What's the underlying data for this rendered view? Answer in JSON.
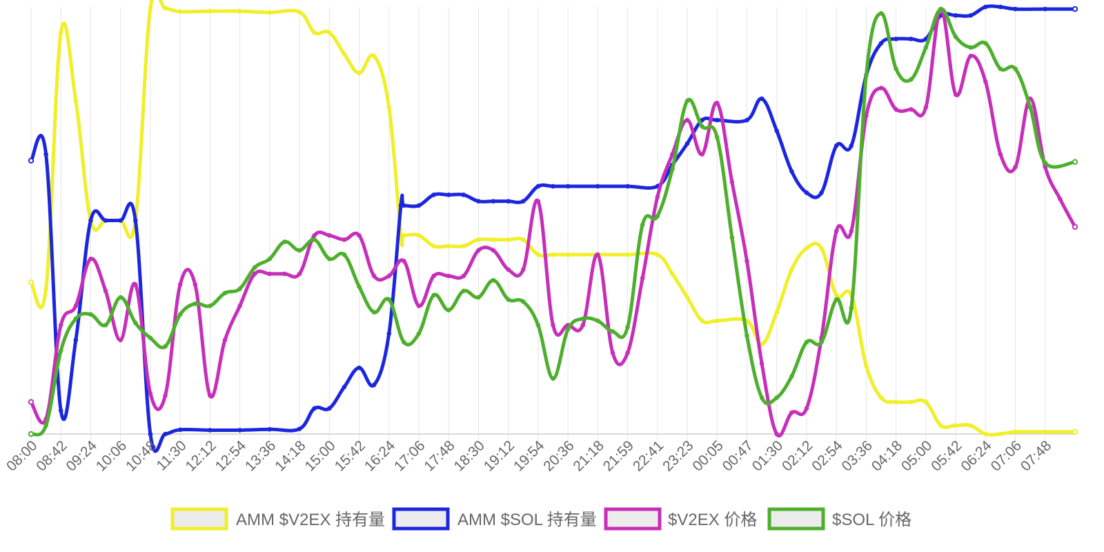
{
  "chart_data": {
    "type": "line",
    "title": "",
    "xlabel": "",
    "ylabel": "",
    "ylim": [
      0,
      1
    ],
    "x": [
      "08:00",
      "08:42",
      "09:24",
      "10:06",
      "10:48",
      "11:30",
      "12:12",
      "12:54",
      "13:36",
      "14:18",
      "15:00",
      "15:42",
      "16:24",
      "17:06",
      "17:48",
      "18:30",
      "19:12",
      "19:54",
      "20:36",
      "21:18",
      "21:59",
      "22:41",
      "23:23",
      "00:05",
      "00:47",
      "01:30",
      "02:12",
      "02:54",
      "03:36",
      "04:18",
      "05:00",
      "05:42",
      "06:24",
      "07:06",
      "07:48"
    ],
    "grid": true,
    "legend_position": "bottom",
    "series": [
      {
        "name": "AMM $V2EX 持有量",
        "color": "#f0ef2a",
        "points": [
          [
            0.0,
            0.355
          ],
          [
            0.5,
            0.34
          ],
          [
            1.0,
            0.94
          ],
          [
            1.5,
            0.78
          ],
          [
            2.0,
            0.5
          ],
          [
            2.5,
            0.5
          ],
          [
            3.0,
            0.5
          ],
          [
            3.5,
            0.5
          ],
          [
            4.0,
            0.997
          ],
          [
            4.5,
            0.997
          ],
          [
            5.0,
            0.989
          ],
          [
            6.0,
            0.99
          ],
          [
            7.0,
            0.99
          ],
          [
            8.0,
            0.987
          ],
          [
            9.0,
            0.988
          ],
          [
            9.5,
            0.94
          ],
          [
            10.0,
            0.94
          ],
          [
            10.5,
            0.89
          ],
          [
            11.0,
            0.845
          ],
          [
            11.5,
            0.885
          ],
          [
            12.0,
            0.765
          ],
          [
            12.4,
            0.465
          ],
          [
            12.5,
            0.465
          ],
          [
            13.0,
            0.465
          ],
          [
            13.5,
            0.44
          ],
          [
            14.0,
            0.44
          ],
          [
            14.5,
            0.44
          ],
          [
            15.0,
            0.455
          ],
          [
            15.5,
            0.455
          ],
          [
            16.0,
            0.455
          ],
          [
            16.5,
            0.455
          ],
          [
            17.0,
            0.42
          ],
          [
            17.5,
            0.42
          ],
          [
            18.0,
            0.42
          ],
          [
            19.0,
            0.42
          ],
          [
            20.0,
            0.42
          ],
          [
            21.0,
            0.42
          ],
          [
            21.5,
            0.375
          ],
          [
            22.0,
            0.32
          ],
          [
            22.5,
            0.265
          ],
          [
            23.0,
            0.265
          ],
          [
            24.0,
            0.265
          ],
          [
            24.5,
            0.21
          ],
          [
            25.0,
            0.285
          ],
          [
            25.5,
            0.385
          ],
          [
            26.0,
            0.435
          ],
          [
            26.5,
            0.435
          ],
          [
            27.0,
            0.325
          ],
          [
            27.5,
            0.325
          ],
          [
            28.0,
            0.16
          ],
          [
            28.5,
            0.085
          ],
          [
            29.0,
            0.075
          ],
          [
            29.5,
            0.075
          ],
          [
            30.0,
            0.075
          ],
          [
            30.5,
            0.02
          ],
          [
            31.0,
            0.02
          ],
          [
            31.5,
            0.02
          ],
          [
            32.0,
            0.0
          ],
          [
            32.5,
            0.0
          ],
          [
            33.0,
            0.005
          ],
          [
            34.0,
            0.005
          ],
          [
            35.0,
            0.005
          ]
        ]
      },
      {
        "name": "AMM $SOL 持有量",
        "color": "#1b27de",
        "points": [
          [
            0.0,
            0.64
          ],
          [
            0.5,
            0.655
          ],
          [
            1.0,
            0.055
          ],
          [
            1.5,
            0.22
          ],
          [
            2.0,
            0.5
          ],
          [
            2.5,
            0.5
          ],
          [
            3.0,
            0.5
          ],
          [
            3.5,
            0.5
          ],
          [
            4.0,
            0.0
          ],
          [
            4.5,
            0.0
          ],
          [
            5.0,
            0.01
          ],
          [
            6.0,
            0.009
          ],
          [
            7.0,
            0.009
          ],
          [
            8.0,
            0.011
          ],
          [
            9.0,
            0.012
          ],
          [
            9.5,
            0.06
          ],
          [
            10.0,
            0.06
          ],
          [
            10.5,
            0.11
          ],
          [
            11.0,
            0.155
          ],
          [
            11.5,
            0.115
          ],
          [
            12.0,
            0.235
          ],
          [
            12.4,
            0.535
          ],
          [
            12.5,
            0.535
          ],
          [
            13.0,
            0.535
          ],
          [
            13.5,
            0.56
          ],
          [
            14.0,
            0.56
          ],
          [
            14.5,
            0.56
          ],
          [
            15.0,
            0.545
          ],
          [
            15.5,
            0.545
          ],
          [
            16.0,
            0.545
          ],
          [
            16.5,
            0.545
          ],
          [
            17.0,
            0.58
          ],
          [
            17.5,
            0.58
          ],
          [
            18.0,
            0.58
          ],
          [
            19.0,
            0.58
          ],
          [
            20.0,
            0.58
          ],
          [
            21.0,
            0.58
          ],
          [
            21.5,
            0.63
          ],
          [
            22.0,
            0.68
          ],
          [
            22.5,
            0.735
          ],
          [
            23.0,
            0.735
          ],
          [
            24.0,
            0.735
          ],
          [
            24.5,
            0.785
          ],
          [
            25.0,
            0.71
          ],
          [
            25.5,
            0.615
          ],
          [
            26.0,
            0.565
          ],
          [
            26.5,
            0.565
          ],
          [
            27.0,
            0.675
          ],
          [
            27.5,
            0.675
          ],
          [
            28.0,
            0.84
          ],
          [
            28.5,
            0.915
          ],
          [
            29.0,
            0.925
          ],
          [
            29.5,
            0.925
          ],
          [
            30.0,
            0.925
          ],
          [
            30.5,
            0.98
          ],
          [
            31.0,
            0.98
          ],
          [
            31.5,
            0.98
          ],
          [
            32.0,
            1.0
          ],
          [
            32.5,
            1.0
          ],
          [
            33.0,
            0.995
          ],
          [
            34.0,
            0.995
          ],
          [
            35.0,
            0.995
          ]
        ]
      },
      {
        "name": "$V2EX 价格",
        "color": "#c62fb9",
        "points": [
          [
            0.0,
            0.075
          ],
          [
            0.5,
            0.035
          ],
          [
            1.0,
            0.255
          ],
          [
            1.5,
            0.3
          ],
          [
            2.0,
            0.41
          ],
          [
            2.5,
            0.335
          ],
          [
            3.0,
            0.22
          ],
          [
            3.5,
            0.35
          ],
          [
            4.0,
            0.095
          ],
          [
            4.5,
            0.09
          ],
          [
            5.0,
            0.35
          ],
          [
            5.5,
            0.35
          ],
          [
            6.0,
            0.09
          ],
          [
            6.5,
            0.22
          ],
          [
            7.0,
            0.3
          ],
          [
            7.5,
            0.375
          ],
          [
            8.0,
            0.375
          ],
          [
            8.5,
            0.375
          ],
          [
            9.0,
            0.375
          ],
          [
            9.5,
            0.465
          ],
          [
            10.0,
            0.465
          ],
          [
            10.5,
            0.455
          ],
          [
            11.0,
            0.465
          ],
          [
            11.5,
            0.37
          ],
          [
            12.0,
            0.37
          ],
          [
            12.5,
            0.405
          ],
          [
            13.0,
            0.3
          ],
          [
            13.5,
            0.37
          ],
          [
            14.0,
            0.37
          ],
          [
            14.5,
            0.37
          ],
          [
            15.0,
            0.43
          ],
          [
            15.5,
            0.43
          ],
          [
            16.0,
            0.385
          ],
          [
            16.5,
            0.385
          ],
          [
            17.0,
            0.545
          ],
          [
            17.5,
            0.255
          ],
          [
            18.0,
            0.255
          ],
          [
            18.5,
            0.255
          ],
          [
            19.0,
            0.42
          ],
          [
            19.5,
            0.19
          ],
          [
            20.0,
            0.19
          ],
          [
            20.5,
            0.365
          ],
          [
            21.0,
            0.555
          ],
          [
            21.5,
            0.655
          ],
          [
            22.0,
            0.735
          ],
          [
            22.5,
            0.655
          ],
          [
            23.0,
            0.775
          ],
          [
            23.5,
            0.59
          ],
          [
            24.0,
            0.405
          ],
          [
            24.5,
            0.165
          ],
          [
            25.0,
            0.0
          ],
          [
            25.5,
            0.05
          ],
          [
            26.0,
            0.06
          ],
          [
            26.5,
            0.225
          ],
          [
            27.0,
            0.475
          ],
          [
            27.5,
            0.475
          ],
          [
            28.0,
            0.745
          ],
          [
            28.5,
            0.81
          ],
          [
            29.0,
            0.76
          ],
          [
            29.5,
            0.76
          ],
          [
            30.0,
            0.765
          ],
          [
            30.5,
            0.995
          ],
          [
            31.0,
            0.795
          ],
          [
            31.5,
            0.885
          ],
          [
            32.0,
            0.825
          ],
          [
            32.5,
            0.655
          ],
          [
            33.0,
            0.625
          ],
          [
            33.5,
            0.785
          ],
          [
            34.0,
            0.625
          ],
          [
            34.5,
            0.55
          ],
          [
            35.0,
            0.485
          ]
        ]
      },
      {
        "name": "$SOL 价格",
        "color": "#4daf2c",
        "points": [
          [
            0.0,
            0.0
          ],
          [
            0.5,
            0.02
          ],
          [
            1.0,
            0.195
          ],
          [
            1.5,
            0.27
          ],
          [
            2.0,
            0.28
          ],
          [
            2.5,
            0.255
          ],
          [
            3.0,
            0.32
          ],
          [
            3.5,
            0.26
          ],
          [
            4.0,
            0.225
          ],
          [
            4.5,
            0.205
          ],
          [
            5.0,
            0.28
          ],
          [
            5.5,
            0.305
          ],
          [
            6.0,
            0.3
          ],
          [
            6.5,
            0.33
          ],
          [
            7.0,
            0.34
          ],
          [
            7.5,
            0.39
          ],
          [
            8.0,
            0.41
          ],
          [
            8.5,
            0.45
          ],
          [
            9.0,
            0.43
          ],
          [
            9.5,
            0.455
          ],
          [
            10.0,
            0.41
          ],
          [
            10.5,
            0.42
          ],
          [
            11.0,
            0.345
          ],
          [
            11.5,
            0.285
          ],
          [
            12.0,
            0.315
          ],
          [
            12.5,
            0.215
          ],
          [
            13.0,
            0.235
          ],
          [
            13.5,
            0.325
          ],
          [
            14.0,
            0.29
          ],
          [
            14.5,
            0.335
          ],
          [
            15.0,
            0.32
          ],
          [
            15.5,
            0.36
          ],
          [
            16.0,
            0.315
          ],
          [
            16.5,
            0.31
          ],
          [
            17.0,
            0.255
          ],
          [
            17.5,
            0.13
          ],
          [
            18.0,
            0.245
          ],
          [
            18.5,
            0.27
          ],
          [
            19.0,
            0.265
          ],
          [
            19.5,
            0.24
          ],
          [
            20.0,
            0.25
          ],
          [
            20.5,
            0.49
          ],
          [
            21.0,
            0.51
          ],
          [
            21.5,
            0.62
          ],
          [
            22.0,
            0.78
          ],
          [
            22.5,
            0.72
          ],
          [
            23.0,
            0.695
          ],
          [
            23.5,
            0.46
          ],
          [
            24.0,
            0.23
          ],
          [
            24.5,
            0.085
          ],
          [
            25.0,
            0.085
          ],
          [
            25.5,
            0.135
          ],
          [
            26.0,
            0.215
          ],
          [
            26.5,
            0.215
          ],
          [
            27.0,
            0.315
          ],
          [
            27.5,
            0.295
          ],
          [
            28.0,
            0.84
          ],
          [
            28.5,
            0.985
          ],
          [
            29.0,
            0.855
          ],
          [
            29.5,
            0.83
          ],
          [
            30.0,
            0.905
          ],
          [
            30.5,
            0.995
          ],
          [
            31.0,
            0.93
          ],
          [
            31.5,
            0.905
          ],
          [
            32.0,
            0.915
          ],
          [
            32.5,
            0.855
          ],
          [
            33.0,
            0.855
          ],
          [
            33.5,
            0.765
          ],
          [
            34.0,
            0.635
          ],
          [
            35.0,
            0.637
          ]
        ]
      }
    ]
  }
}
